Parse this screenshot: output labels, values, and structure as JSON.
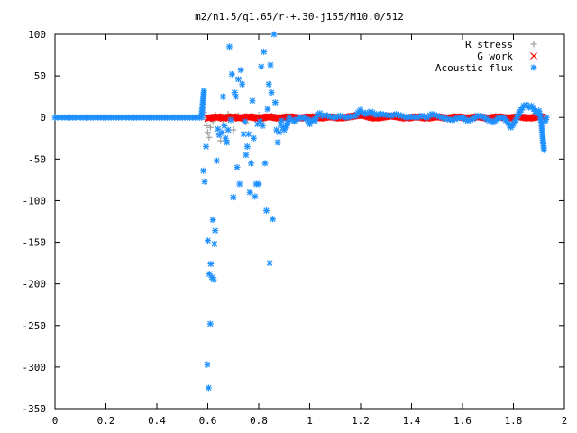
{
  "chart_data": {
    "type": "scatter",
    "title": "m2/n1.5/q1.65/r-+.30-j155/M10.0/512",
    "xlim": [
      0,
      2
    ],
    "ylim": [
      -350,
      100
    ],
    "xticks": [
      "0",
      "0.2",
      "0.4",
      "0.6",
      "0.8",
      "1",
      "1.2",
      "1.4",
      "1.6",
      "1.8",
      "2"
    ],
    "yticks": [
      "100",
      "50",
      "0",
      "-50",
      "-100",
      "-150",
      "-200",
      "-250",
      "-300",
      "-350"
    ],
    "xtick_values": [
      0,
      0.2,
      0.4,
      0.6,
      0.8,
      1.0,
      1.2,
      1.4,
      1.6,
      1.8,
      2.0
    ],
    "ytick_values": [
      100,
      50,
      0,
      -50,
      -100,
      -150,
      -200,
      -250,
      -300,
      -350
    ],
    "legend_position": "top-right",
    "series": [
      {
        "name": "R stress",
        "marker": "plus",
        "color": "#a0a0a0",
        "points": [
          [
            0.585,
            6
          ],
          [
            0.59,
            -2
          ],
          [
            0.595,
            -10
          ],
          [
            0.6,
            -18
          ],
          [
            0.605,
            -24
          ],
          [
            0.61,
            -12
          ],
          [
            0.62,
            -5
          ],
          [
            0.63,
            3
          ],
          [
            0.65,
            -28
          ],
          [
            0.66,
            -8
          ],
          [
            0.68,
            4
          ],
          [
            0.7,
            -15
          ],
          [
            0.72,
            2
          ],
          [
            0.75,
            -6
          ],
          [
            0.78,
            1
          ],
          [
            0.8,
            3
          ],
          [
            0.82,
            -4
          ],
          [
            0.85,
            2
          ],
          [
            0.88,
            1
          ],
          [
            0.92,
            0
          ]
        ]
      },
      {
        "name": "G work",
        "marker": "cross",
        "color": "#ff0000",
        "points": [
          [
            0.6,
            -1
          ],
          [
            0.62,
            0
          ],
          [
            0.64,
            1
          ],
          [
            0.66,
            -1
          ],
          [
            0.68,
            0
          ],
          [
            0.7,
            1
          ],
          [
            0.72,
            -1
          ],
          [
            0.74,
            0
          ],
          [
            0.76,
            1
          ],
          [
            0.78,
            0
          ],
          [
            0.8,
            -1
          ],
          [
            0.82,
            0
          ],
          [
            0.84,
            1
          ],
          [
            0.86,
            0
          ],
          [
            0.88,
            -1
          ],
          [
            0.9,
            0
          ],
          [
            0.92,
            1
          ],
          [
            0.94,
            0
          ],
          [
            0.96,
            -1
          ],
          [
            0.98,
            0
          ],
          [
            1.0,
            1
          ],
          [
            1.02,
            0
          ],
          [
            1.04,
            -1
          ],
          [
            1.06,
            0
          ],
          [
            1.08,
            1
          ],
          [
            1.1,
            0
          ],
          [
            1.12,
            -1
          ],
          [
            1.14,
            0
          ],
          [
            1.16,
            1
          ],
          [
            1.18,
            2
          ],
          [
            1.2,
            3
          ],
          [
            1.22,
            2
          ],
          [
            1.24,
            0
          ],
          [
            1.26,
            -1
          ],
          [
            1.28,
            0
          ],
          [
            1.3,
            1
          ],
          [
            1.32,
            2
          ],
          [
            1.34,
            1
          ],
          [
            1.36,
            0
          ],
          [
            1.38,
            -1
          ],
          [
            1.4,
            0
          ],
          [
            1.42,
            1
          ],
          [
            1.44,
            0
          ],
          [
            1.46,
            -1
          ],
          [
            1.48,
            0
          ],
          [
            1.5,
            1
          ],
          [
            1.52,
            0
          ],
          [
            1.54,
            -1
          ],
          [
            1.56,
            0
          ],
          [
            1.58,
            1
          ],
          [
            1.6,
            0
          ],
          [
            1.62,
            -1
          ],
          [
            1.64,
            0
          ],
          [
            1.66,
            1
          ],
          [
            1.68,
            0
          ],
          [
            1.7,
            -1
          ],
          [
            1.72,
            0
          ],
          [
            1.74,
            1
          ],
          [
            1.76,
            0
          ],
          [
            1.78,
            -1
          ],
          [
            1.8,
            0
          ],
          [
            1.82,
            1
          ],
          [
            1.84,
            0
          ],
          [
            1.86,
            -1
          ],
          [
            1.88,
            0
          ],
          [
            1.9,
            1
          ],
          [
            1.92,
            0
          ]
        ]
      },
      {
        "name": "Acoustic flux",
        "marker": "star",
        "color": "#1e90ff",
        "points": [
          [
            0.0,
            0
          ],
          [
            0.02,
            0
          ],
          [
            0.04,
            0
          ],
          [
            0.06,
            0
          ],
          [
            0.08,
            0
          ],
          [
            0.1,
            0
          ],
          [
            0.12,
            0
          ],
          [
            0.14,
            0
          ],
          [
            0.16,
            0
          ],
          [
            0.18,
            0
          ],
          [
            0.2,
            0
          ],
          [
            0.22,
            0
          ],
          [
            0.24,
            0
          ],
          [
            0.26,
            0
          ],
          [
            0.28,
            0
          ],
          [
            0.3,
            0
          ],
          [
            0.32,
            0
          ],
          [
            0.34,
            0
          ],
          [
            0.36,
            0
          ],
          [
            0.38,
            0
          ],
          [
            0.4,
            0
          ],
          [
            0.42,
            0
          ],
          [
            0.44,
            0
          ],
          [
            0.46,
            0
          ],
          [
            0.48,
            0
          ],
          [
            0.5,
            0
          ],
          [
            0.52,
            0
          ],
          [
            0.54,
            0
          ],
          [
            0.56,
            0
          ],
          [
            0.575,
            0
          ],
          [
            0.585,
            32
          ],
          [
            0.583,
            -64
          ],
          [
            0.588,
            -77
          ],
          [
            0.593,
            -35
          ],
          [
            0.6,
            -148
          ],
          [
            0.598,
            -297
          ],
          [
            0.603,
            -325
          ],
          [
            0.606,
            -188
          ],
          [
            0.61,
            -248
          ],
          [
            0.612,
            -176
          ],
          [
            0.616,
            -192
          ],
          [
            0.62,
            -123
          ],
          [
            0.623,
            -195
          ],
          [
            0.626,
            -152
          ],
          [
            0.629,
            -136
          ],
          [
            0.635,
            -52
          ],
          [
            0.64,
            -14
          ],
          [
            0.645,
            -21
          ],
          [
            0.655,
            -18
          ],
          [
            0.66,
            25
          ],
          [
            0.665,
            -10
          ],
          [
            0.67,
            -25
          ],
          [
            0.675,
            -30
          ],
          [
            0.68,
            -15
          ],
          [
            0.685,
            85
          ],
          [
            0.69,
            -3
          ],
          [
            0.695,
            52
          ],
          [
            0.7,
            -96
          ],
          [
            0.705,
            30
          ],
          [
            0.71,
            25
          ],
          [
            0.715,
            -60
          ],
          [
            0.72,
            46
          ],
          [
            0.725,
            -80
          ],
          [
            0.73,
            57
          ],
          [
            0.735,
            40
          ],
          [
            0.74,
            -20
          ],
          [
            0.745,
            -5
          ],
          [
            0.75,
            -45
          ],
          [
            0.755,
            -35
          ],
          [
            0.76,
            -20
          ],
          [
            0.765,
            -90
          ],
          [
            0.77,
            -55
          ],
          [
            0.775,
            20
          ],
          [
            0.78,
            -25
          ],
          [
            0.785,
            -95
          ],
          [
            0.79,
            -80
          ],
          [
            0.795,
            -8
          ],
          [
            0.8,
            -80
          ],
          [
            0.805,
            -5
          ],
          [
            0.81,
            61
          ],
          [
            0.815,
            -10
          ],
          [
            0.82,
            79
          ],
          [
            0.825,
            -55
          ],
          [
            0.83,
            -112
          ],
          [
            0.835,
            10
          ],
          [
            0.84,
            40
          ],
          [
            0.843,
            -175
          ],
          [
            0.846,
            63
          ],
          [
            0.85,
            30
          ],
          [
            0.855,
            -122
          ],
          [
            0.86,
            100
          ],
          [
            0.865,
            18
          ],
          [
            0.87,
            -15
          ],
          [
            0.875,
            -30
          ],
          [
            0.88,
            -18
          ],
          [
            0.885,
            -8
          ],
          [
            0.89,
            -4
          ],
          [
            0.895,
            -12
          ],
          [
            0.9,
            -15
          ],
          [
            0.905,
            -12
          ],
          [
            0.91,
            -10
          ],
          [
            0.915,
            -4
          ],
          [
            0.92,
            0
          ],
          [
            0.93,
            -3
          ],
          [
            0.94,
            -5
          ],
          [
            0.95,
            -2
          ],
          [
            0.96,
            0
          ],
          [
            0.97,
            -1
          ],
          [
            0.98,
            0
          ],
          [
            0.99,
            -2
          ],
          [
            1.0,
            -8
          ],
          [
            1.01,
            -3
          ],
          [
            1.02,
            -4
          ],
          [
            1.03,
            3
          ],
          [
            1.04,
            5
          ],
          [
            1.05,
            2
          ],
          [
            1.06,
            3
          ],
          [
            1.08,
            1
          ],
          [
            1.1,
            0
          ],
          [
            1.12,
            2
          ],
          [
            1.14,
            0
          ],
          [
            1.16,
            1
          ],
          [
            1.18,
            2
          ],
          [
            1.2,
            9
          ],
          [
            1.21,
            6
          ],
          [
            1.22,
            4
          ],
          [
            1.24,
            7
          ],
          [
            1.26,
            3
          ],
          [
            1.28,
            4
          ],
          [
            1.3,
            3
          ],
          [
            1.32,
            2
          ],
          [
            1.34,
            4
          ],
          [
            1.36,
            2
          ],
          [
            1.38,
            0
          ],
          [
            1.4,
            1
          ],
          [
            1.42,
            0
          ],
          [
            1.44,
            2
          ],
          [
            1.46,
            0
          ],
          [
            1.48,
            4
          ],
          [
            1.5,
            2
          ],
          [
            1.52,
            0
          ],
          [
            1.54,
            -2
          ],
          [
            1.56,
            -3
          ],
          [
            1.58,
            -1
          ],
          [
            1.6,
            0
          ],
          [
            1.62,
            -4
          ],
          [
            1.64,
            -2
          ],
          [
            1.66,
            2
          ],
          [
            1.68,
            1
          ],
          [
            1.7,
            -3
          ],
          [
            1.72,
            -6
          ],
          [
            1.74,
            -1
          ],
          [
            1.76,
            0
          ],
          [
            1.78,
            -7
          ],
          [
            1.79,
            -12
          ],
          [
            1.8,
            -8
          ],
          [
            1.81,
            -3
          ],
          [
            1.82,
            4
          ],
          [
            1.83,
            9
          ],
          [
            1.84,
            14
          ],
          [
            1.85,
            15
          ],
          [
            1.86,
            12
          ],
          [
            1.87,
            14
          ],
          [
            1.88,
            10
          ],
          [
            1.89,
            5
          ],
          [
            1.9,
            8
          ],
          [
            1.905,
            2
          ],
          [
            1.91,
            -8
          ],
          [
            1.915,
            -25
          ],
          [
            1.92,
            -39
          ],
          [
            1.925,
            -5
          ],
          [
            1.93,
            0
          ]
        ]
      }
    ]
  }
}
